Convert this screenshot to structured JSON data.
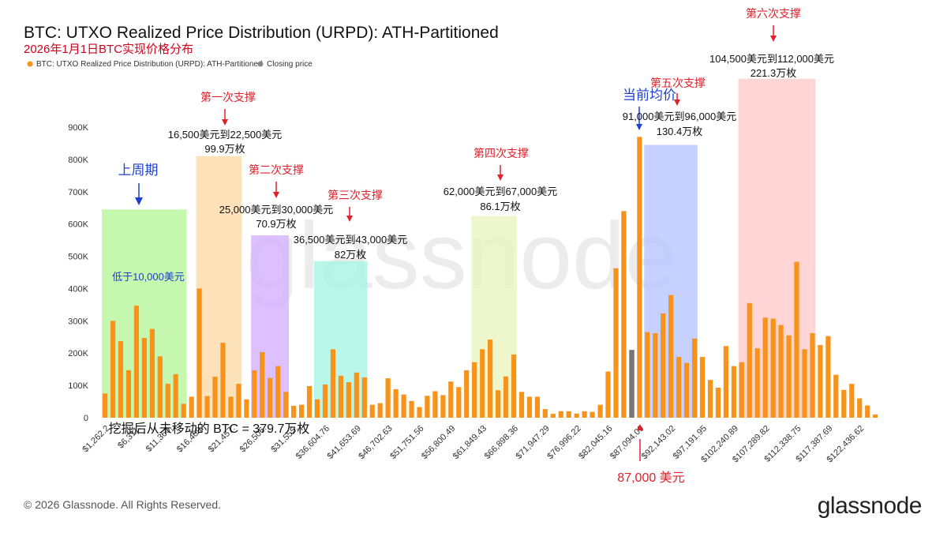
{
  "title": "BTC: UTXO Realized Price Distribution (URPD): ATH-Partitioned",
  "subtitle": "2026年1月1日BTC实现价格分布",
  "legend": [
    {
      "label": "BTC: UTXO Realized Price Distribution (URPD): ATH-Partitioned",
      "color": "#f7931a"
    },
    {
      "label": "Closing price",
      "color": "#888888"
    }
  ],
  "footer": "© 2026 Glassnode. All Rights Reserved.",
  "brand": "glassnode",
  "watermark": "glassnode",
  "chart_data": {
    "type": "bar",
    "ylim": [
      0,
      900000
    ],
    "yticks": [
      0,
      100000,
      200000,
      300000,
      400000,
      500000,
      600000,
      700000,
      800000,
      900000
    ],
    "ytick_labels": [
      "0",
      "100K",
      "200K",
      "300K",
      "400K",
      "500K",
      "600K",
      "700K",
      "800K",
      "900K"
    ],
    "xtick_labels": [
      "$1,262.2",
      "$6,311.",
      "$11,360.",
      "$16,409.",
      "$21,457.",
      "$26,506.",
      "$31,555.",
      "$36,604.76",
      "$41,653.69",
      "$46,702.63",
      "$51,751.56",
      "$56,800.49",
      "$61,849.43",
      "$66,898.36",
      "$71,947.29",
      "$76,996.22",
      "$82,045.16",
      "$87,094.09",
      "$92,143.02",
      "$97,191.95",
      "$102,240.89",
      "$107,289.82",
      "$112,338.75",
      "$117,387.69",
      "$122,436.62"
    ],
    "closing_price_index": 67,
    "values": [
      75000,
      300000,
      237000,
      147000,
      347000,
      247000,
      275000,
      190000,
      105000,
      135000,
      43000,
      65000,
      400000,
      67000,
      127000,
      232000,
      65000,
      105000,
      57000,
      147000,
      203000,
      123000,
      160000,
      80000,
      37000,
      40000,
      98000,
      57000,
      103000,
      212000,
      130000,
      110000,
      140000,
      125000,
      40000,
      45000,
      122000,
      88000,
      72000,
      52000,
      33000,
      68000,
      82000,
      70000,
      112000,
      95000,
      147000,
      172000,
      212000,
      242000,
      85000,
      128000,
      196000,
      80000,
      65000,
      65000,
      27000,
      12000,
      20000,
      20000,
      13000,
      20000,
      18000,
      40000,
      143000,
      463000,
      640000,
      210000,
      870000,
      265000,
      262000,
      323000,
      380000,
      188000,
      170000,
      245000,
      188000,
      117000,
      93000,
      222000,
      160000,
      172000,
      355000,
      215000,
      310000,
      307000,
      287000,
      255000,
      483000,
      212000,
      262000,
      225000,
      253000,
      133000,
      86000,
      105000,
      60000,
      38000,
      10000
    ]
  },
  "ranges": [
    {
      "from": 0,
      "to": 10,
      "top": 645000,
      "color": "#b6f59a"
    },
    {
      "from": 12,
      "to": 17,
      "top": 810000,
      "color": "#fbd9a8"
    },
    {
      "from": 19,
      "to": 23,
      "top": 565000,
      "color": "#d4b0ff"
    },
    {
      "from": 27,
      "to": 33,
      "top": 485000,
      "color": "#a8f5e6"
    },
    {
      "from": 47,
      "to": 52,
      "top": 625000,
      "color": "#eaf5bf"
    },
    {
      "from": 69,
      "to": 75,
      "top": 845000,
      "color": "#b8c6ff"
    },
    {
      "from": 81,
      "to": 90,
      "top": 1050000,
      "color": "#ffcaca"
    }
  ],
  "annotations": {
    "prev_cycle_label": "上周期",
    "below_10k_label": "低于10,000美元",
    "support1_title": "第一次支撑",
    "support1_range": "16,500美元到22,500美元",
    "support1_amount": "99.9万枚",
    "support2_title": "第二次支撑",
    "support2_range": "25,000美元到30,000美元",
    "support2_amount": "70.9万枚",
    "support3_title": "第三次支撑",
    "support3_range": "36,500美元到43,000美元",
    "support3_amount": "82万枚",
    "support4_title": "第四次支撑",
    "support4_range": "62,000美元到67,000美元",
    "support4_amount": "86.1万枚",
    "avg_price_label": "当前均价",
    "support5_title": "第五次支撑",
    "support5_range": "91,000美元到96,000美元",
    "support5_amount": "130.4万枚",
    "support6_title": "第六次支撑",
    "support6_range": "104,500美元到112,000美元",
    "support6_amount": "221.3万枚",
    "never_moved": "挖掘后从未移动的 BTC = 379.7万枚",
    "price_87k": "87,000 美元"
  }
}
